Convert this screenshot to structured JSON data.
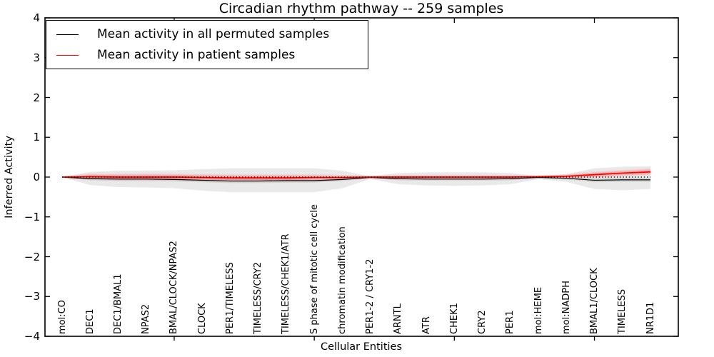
{
  "title": "Circadian rhythm pathway -- 259 samples",
  "axes": {
    "xlabel": "Cellular Entities",
    "ylabel": "Inferred Activity",
    "ytick_labels": [
      "4",
      "3",
      "2",
      "1",
      "0",
      "−1",
      "−2",
      "−3",
      "−4"
    ],
    "ytick_values": [
      4,
      3,
      2,
      1,
      0,
      -1,
      -2,
      -3,
      -4
    ]
  },
  "legend": {
    "items": [
      {
        "label": "Mean activity in all permuted samples",
        "color": "#000000"
      },
      {
        "label": "Mean activity in patient samples",
        "color": "#ff0000"
      }
    ]
  },
  "chart_data": {
    "type": "line",
    "title": "Circadian rhythm pathway -- 259 samples",
    "xlabel": "Cellular Entities",
    "ylabel": "Inferred Activity",
    "ylim": [
      -4,
      4
    ],
    "grid": false,
    "legend_position": "upper left",
    "zero_line": 0,
    "xtick_mark_indices": [
      4,
      9,
      14,
      19
    ],
    "categories": [
      "mol:CO",
      "DEC1",
      "DEC1/BMAL1",
      "NPAS2",
      "BMAL/CLOCK/NPAS2",
      "CLOCK",
      "PER1/TIMELESS",
      "TIMELESS/CRY2",
      "TIMELESS/CHEK1/ATR",
      "S phase of mitotic cell cycle",
      "chromatin modification",
      "PER1-2 / CRY1-2",
      "ARNTL",
      "ATR",
      "CHEK1",
      "CRY2",
      "PER1",
      "mol:HEME",
      "mol:NADPH",
      "BMAL1/CLOCK",
      "TIMELESS",
      "NR1D1"
    ],
    "series": [
      {
        "name": "Mean activity in all permuted samples",
        "color": "#000000",
        "values": [
          0,
          -0.04,
          -0.05,
          -0.05,
          -0.06,
          -0.08,
          -0.1,
          -0.1,
          -0.09,
          -0.09,
          -0.06,
          -0.01,
          -0.04,
          -0.05,
          -0.05,
          -0.05,
          -0.04,
          -0.01,
          -0.03,
          -0.08,
          -0.07,
          -0.07
        ],
        "band_upper": [
          0,
          0.13,
          0.16,
          0.16,
          0.17,
          0.2,
          0.22,
          0.22,
          0.22,
          0.22,
          0.16,
          0.02,
          0.1,
          0.12,
          0.12,
          0.12,
          0.1,
          0.03,
          0.07,
          0.22,
          0.26,
          0.27
        ],
        "band_lower": [
          0,
          -0.2,
          -0.25,
          -0.26,
          -0.28,
          -0.34,
          -0.38,
          -0.38,
          -0.38,
          -0.38,
          -0.28,
          -0.05,
          -0.18,
          -0.21,
          -0.22,
          -0.21,
          -0.18,
          -0.05,
          -0.12,
          -0.3,
          -0.33,
          -0.3
        ],
        "inner_band_upper": [
          0,
          0.0,
          0.0,
          0.0,
          -0.01,
          -0.03,
          -0.05,
          -0.05,
          -0.04,
          -0.04,
          -0.02,
          0.0,
          0.0,
          -0.01,
          -0.01,
          -0.01,
          0.0,
          0.0,
          0.0,
          -0.03,
          -0.02,
          -0.02
        ],
        "inner_band_lower": [
          0,
          -0.08,
          -0.1,
          -0.1,
          -0.11,
          -0.13,
          -0.15,
          -0.15,
          -0.14,
          -0.14,
          -0.1,
          -0.02,
          -0.08,
          -0.09,
          -0.09,
          -0.09,
          -0.08,
          -0.02,
          -0.06,
          -0.13,
          -0.12,
          -0.12
        ],
        "band_color": "#e9e9e9",
        "inner_band_color": "#d4d4d4"
      },
      {
        "name": "Mean activity in patient samples",
        "color": "#ff0000",
        "values": [
          0,
          0.01,
          0.0,
          0.0,
          0.0,
          -0.01,
          -0.02,
          -0.02,
          -0.02,
          -0.01,
          -0.01,
          0.0,
          0.0,
          0.0,
          0.0,
          0.0,
          0.0,
          0.01,
          0.02,
          0.06,
          0.1,
          0.13
        ],
        "band_upper": [
          0,
          0.06,
          0.06,
          0.06,
          0.06,
          0.05,
          0.04,
          0.04,
          0.04,
          0.04,
          0.03,
          0.01,
          0.03,
          0.03,
          0.03,
          0.03,
          0.03,
          0.02,
          0.05,
          0.11,
          0.15,
          0.19
        ],
        "band_lower": [
          0,
          -0.04,
          -0.06,
          -0.06,
          -0.06,
          -0.07,
          -0.08,
          -0.08,
          -0.08,
          -0.06,
          -0.05,
          -0.01,
          -0.03,
          -0.03,
          -0.03,
          -0.03,
          -0.03,
          0.0,
          -0.01,
          0.01,
          0.05,
          0.07
        ],
        "band_color": "rgba(255,0,0,0.33)"
      }
    ]
  }
}
